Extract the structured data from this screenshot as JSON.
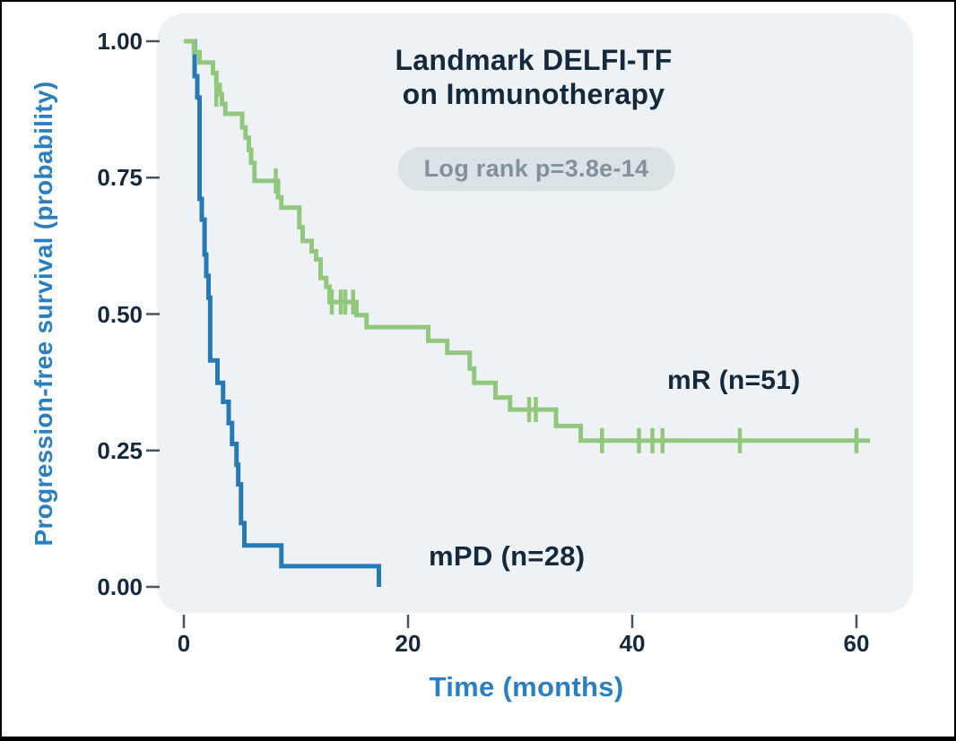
{
  "figure": {
    "title_line1": "Landmark DELFI-TF",
    "title_line2": "on Immunotherapy",
    "stat_badge": "Log rank p=3.8e-14",
    "x_axis_label": "Time (months)",
    "y_axis_label": "Progression-free survival (probability)"
  },
  "colors": {
    "panel_background": "#eef2f4",
    "title_navy": "#14293c",
    "axis_blue": "#2b7fbe",
    "badge_background": "#dce3e7",
    "badge_text": "#81909a",
    "tick_mark": "#47555f",
    "mr_green": "#92c87d",
    "mpd_blue": "#2579b5"
  },
  "chart_data": {
    "type": "line",
    "subtype": "kaplan-meier-step",
    "title": "Landmark DELFI-TF on Immunotherapy",
    "annotation": "Log rank p=3.8e-14",
    "xlabel": "Time (months)",
    "ylabel": "Progression-free survival (probability)",
    "xlim": [
      0,
      66
    ],
    "ylim": [
      0,
      1
    ],
    "x_ticks": [
      0,
      20,
      40,
      60
    ],
    "x_tick_labels": [
      "0",
      "20",
      "40",
      "60"
    ],
    "y_tick_values": [
      1.0,
      0.75,
      0.5,
      0.25,
      0.0
    ],
    "y_tick_labels": [
      "1.00",
      "0.75",
      "0.50",
      "0.25",
      "0.00"
    ],
    "grid": false,
    "legend_position": "inline-labels",
    "series": [
      {
        "name": "mR",
        "label": "mR (n=51)",
        "n": 51,
        "color": "#92c87d",
        "points": [
          [
            0,
            1.0
          ],
          [
            0.9,
            0.98
          ],
          [
            1.4,
            0.961
          ],
          [
            2.6,
            0.942
          ],
          [
            2.9,
            0.92
          ],
          [
            3.2,
            0.903
          ],
          [
            3.4,
            0.885
          ],
          [
            3.7,
            0.867
          ],
          [
            5.2,
            0.842
          ],
          [
            5.5,
            0.823
          ],
          [
            5.8,
            0.801
          ],
          [
            6.0,
            0.777
          ],
          [
            6.3,
            0.744
          ],
          [
            8.4,
            0.714
          ],
          [
            8.7,
            0.695
          ],
          [
            10.3,
            0.659
          ],
          [
            10.6,
            0.634
          ],
          [
            11.4,
            0.615
          ],
          [
            11.8,
            0.6
          ],
          [
            12.2,
            0.566
          ],
          [
            12.7,
            0.55
          ],
          [
            13.0,
            0.522
          ],
          [
            15.4,
            0.498
          ],
          [
            16.3,
            0.476
          ],
          [
            21.8,
            0.451
          ],
          [
            23.5,
            0.429
          ],
          [
            25.5,
            0.4
          ],
          [
            25.9,
            0.374
          ],
          [
            27.8,
            0.347
          ],
          [
            29.1,
            0.325
          ],
          [
            33.2,
            0.295
          ],
          [
            35.4,
            0.268
          ]
        ],
        "end_time": 61.2,
        "censors": [
          [
            2.9,
            0.903
          ],
          [
            8.2,
            0.744
          ],
          [
            13.2,
            0.522
          ],
          [
            14.0,
            0.522
          ],
          [
            14.4,
            0.522
          ],
          [
            15.1,
            0.522
          ],
          [
            30.8,
            0.325
          ],
          [
            31.4,
            0.325
          ],
          [
            37.3,
            0.268
          ],
          [
            40.6,
            0.268
          ],
          [
            41.8,
            0.268
          ],
          [
            42.7,
            0.268
          ],
          [
            49.6,
            0.268
          ],
          [
            60.0,
            0.268
          ]
        ]
      },
      {
        "name": "mPD",
        "label": "mPD (n=28)",
        "n": 28,
        "color": "#2579b5",
        "points": [
          [
            0,
            1.0
          ],
          [
            0.96,
            0.936
          ],
          [
            1.2,
            0.897
          ],
          [
            1.4,
            0.711
          ],
          [
            1.6,
            0.673
          ],
          [
            1.85,
            0.609
          ],
          [
            2.0,
            0.57
          ],
          [
            2.2,
            0.53
          ],
          [
            2.35,
            0.415
          ],
          [
            3.0,
            0.374
          ],
          [
            3.5,
            0.339
          ],
          [
            4.0,
            0.3
          ],
          [
            4.3,
            0.262
          ],
          [
            4.7,
            0.224
          ],
          [
            4.85,
            0.188
          ],
          [
            5.1,
            0.117
          ],
          [
            5.4,
            0.076
          ],
          [
            8.7,
            0.038
          ],
          [
            17.4,
            0.0
          ]
        ],
        "end_time": 17.4,
        "censors": []
      }
    ]
  }
}
